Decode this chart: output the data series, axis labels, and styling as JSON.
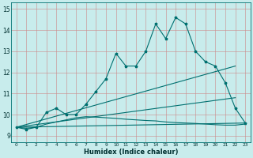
{
  "xlabel": "Humidex (Indice chaleur)",
  "background_color": "#c8ecec",
  "grid_color": "#cc8888",
  "line_color": "#007070",
  "x_ticks": [
    0,
    1,
    2,
    3,
    4,
    5,
    6,
    7,
    8,
    9,
    10,
    11,
    12,
    13,
    14,
    15,
    16,
    17,
    18,
    19,
    20,
    21,
    22,
    23
  ],
  "y_ticks": [
    9,
    10,
    11,
    12,
    13,
    14,
    15
  ],
  "ylim": [
    8.7,
    15.3
  ],
  "xlim": [
    -0.5,
    23.5
  ],
  "line1": [
    9.4,
    9.3,
    9.4,
    10.1,
    10.3,
    10.0,
    10.0,
    10.5,
    11.1,
    11.7,
    12.9,
    12.3,
    12.3,
    13.0,
    14.3,
    13.6,
    14.6,
    14.3,
    13.0,
    12.5,
    12.3,
    11.5,
    10.3,
    9.6
  ],
  "line2_x": [
    0,
    22
  ],
  "line2_y": [
    9.4,
    12.3
  ],
  "line3_x": [
    0,
    23
  ],
  "line3_y": [
    9.4,
    9.6
  ],
  "line4_x": [
    0,
    22
  ],
  "line4_y": [
    9.4,
    10.8
  ],
  "lower_curve": [
    9.4,
    9.35,
    9.4,
    9.55,
    9.65,
    9.75,
    9.85,
    9.9,
    9.88,
    9.85,
    9.82,
    9.78,
    9.75,
    9.72,
    9.7,
    9.65,
    9.62,
    9.6,
    9.58,
    9.55,
    9.52,
    9.5,
    9.5,
    9.55
  ]
}
